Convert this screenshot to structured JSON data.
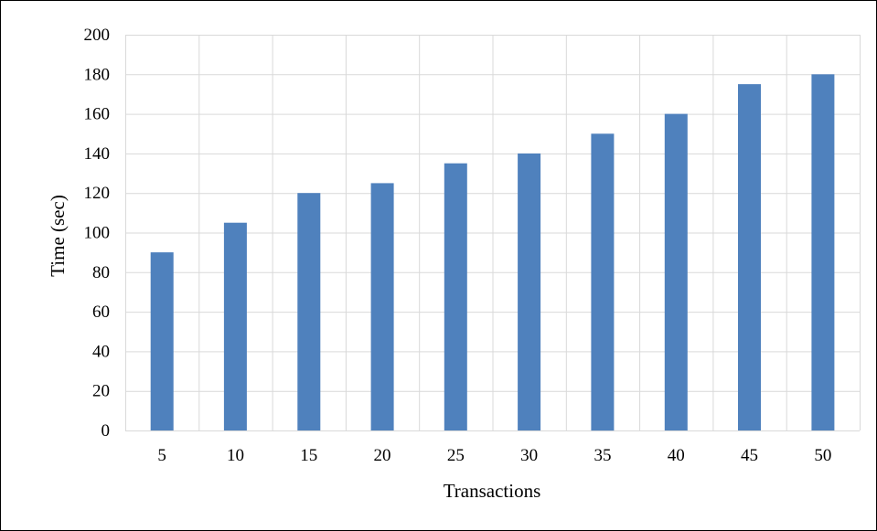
{
  "chart_data": {
    "type": "bar",
    "categories": [
      "5",
      "10",
      "15",
      "20",
      "25",
      "30",
      "35",
      "40",
      "45",
      "50"
    ],
    "series": [
      {
        "values": [
          90,
          105,
          120,
          125,
          135,
          140,
          150,
          160,
          175,
          180
        ],
        "color": "#4f81bd"
      }
    ],
    "title": "",
    "xlabel": "Transactions",
    "ylabel": "Time (sec)",
    "ylim": [
      0,
      200
    ],
    "yticks": [
      0,
      20,
      40,
      60,
      80,
      100,
      120,
      140,
      160,
      180,
      200
    ],
    "grid": true,
    "grid_color": "#d9d9d9",
    "legend": "none"
  }
}
